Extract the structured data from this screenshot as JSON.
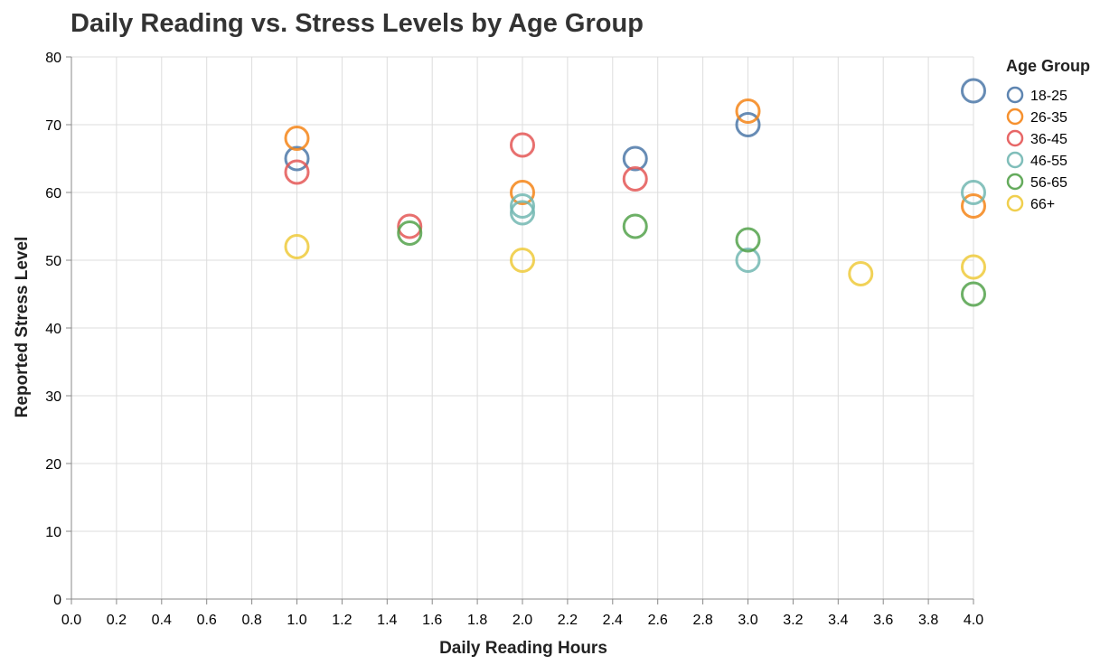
{
  "chart_data": {
    "type": "scatter",
    "title": "Daily Reading vs. Stress Levels by Age Group",
    "xlabel": "Daily Reading Hours",
    "ylabel": "Reported Stress Level",
    "xlim": [
      0,
      4
    ],
    "ylim": [
      0,
      80
    ],
    "xticks": [
      0.0,
      0.2,
      0.4,
      0.6,
      0.8,
      1.0,
      1.2,
      1.4,
      1.6,
      1.8,
      2.0,
      2.2,
      2.4,
      2.6,
      2.8,
      3.0,
      3.2,
      3.4,
      3.6,
      3.8,
      4.0
    ],
    "yticks": [
      0,
      10,
      20,
      30,
      40,
      50,
      60,
      70,
      80
    ],
    "grid": true,
    "legend_title": "Age Group",
    "legend_position": "right",
    "series": [
      {
        "name": "18-25",
        "color": "#4c78a8",
        "points": [
          [
            1.0,
            65
          ],
          [
            2.5,
            65
          ],
          [
            3.0,
            70
          ],
          [
            4.0,
            75
          ]
        ]
      },
      {
        "name": "26-35",
        "color": "#f58518",
        "points": [
          [
            1.0,
            68
          ],
          [
            2.0,
            60
          ],
          [
            3.0,
            72
          ],
          [
            4.0,
            58
          ]
        ]
      },
      {
        "name": "36-45",
        "color": "#e45756",
        "points": [
          [
            1.0,
            63
          ],
          [
            1.5,
            55
          ],
          [
            2.0,
            67
          ],
          [
            2.5,
            62
          ]
        ]
      },
      {
        "name": "46-55",
        "color": "#72b7b2",
        "points": [
          [
            2.0,
            57
          ],
          [
            2.0,
            58
          ],
          [
            3.0,
            50
          ],
          [
            4.0,
            60
          ]
        ]
      },
      {
        "name": "56-65",
        "color": "#54a24b",
        "points": [
          [
            1.5,
            54
          ],
          [
            2.5,
            55
          ],
          [
            3.0,
            53
          ],
          [
            4.0,
            45
          ]
        ]
      },
      {
        "name": "66+",
        "color": "#eeca3b",
        "points": [
          [
            1.0,
            52
          ],
          [
            2.0,
            50
          ],
          [
            3.5,
            48
          ],
          [
            4.0,
            49
          ]
        ]
      }
    ]
  }
}
